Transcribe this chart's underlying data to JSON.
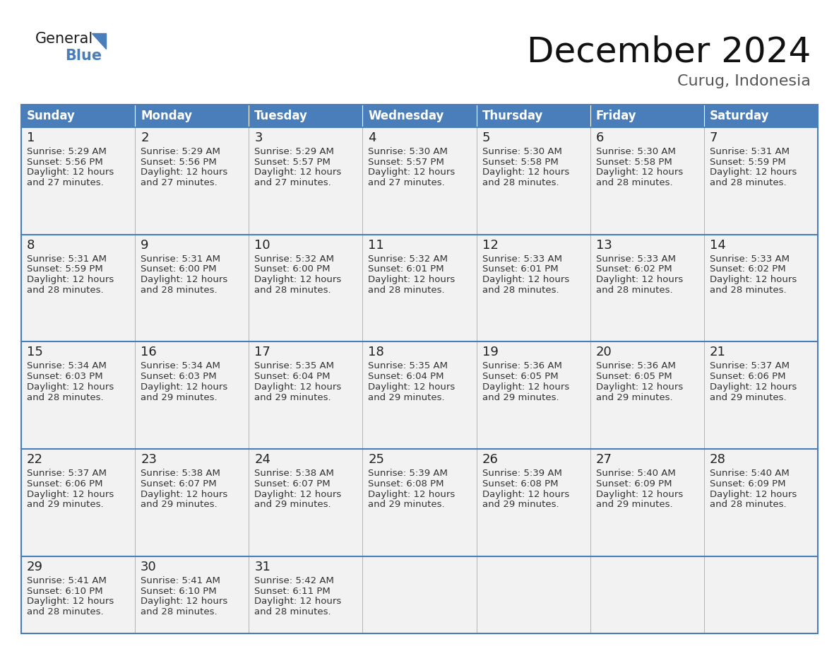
{
  "title": "December 2024",
  "subtitle": "Curug, Indonesia",
  "header_color": "#4A7EBB",
  "header_text_color": "#FFFFFF",
  "days_of_week": [
    "Sunday",
    "Monday",
    "Tuesday",
    "Wednesday",
    "Thursday",
    "Friday",
    "Saturday"
  ],
  "bg_color": "#FFFFFF",
  "cell_bg_even": "#F2F2F2",
  "cell_bg_odd": "#FFFFFF",
  "border_color_blue": "#4A7EBB",
  "border_color_light": "#AAAAAA",
  "text_color_day": "#222222",
  "text_color_info": "#333333",
  "calendar_data": [
    [
      {
        "day": 1,
        "sunrise": "5:29 AM",
        "sunset": "5:56 PM",
        "daylight_hours": 12,
        "daylight_minutes": 27
      },
      {
        "day": 2,
        "sunrise": "5:29 AM",
        "sunset": "5:56 PM",
        "daylight_hours": 12,
        "daylight_minutes": 27
      },
      {
        "day": 3,
        "sunrise": "5:29 AM",
        "sunset": "5:57 PM",
        "daylight_hours": 12,
        "daylight_minutes": 27
      },
      {
        "day": 4,
        "sunrise": "5:30 AM",
        "sunset": "5:57 PM",
        "daylight_hours": 12,
        "daylight_minutes": 27
      },
      {
        "day": 5,
        "sunrise": "5:30 AM",
        "sunset": "5:58 PM",
        "daylight_hours": 12,
        "daylight_minutes": 28
      },
      {
        "day": 6,
        "sunrise": "5:30 AM",
        "sunset": "5:58 PM",
        "daylight_hours": 12,
        "daylight_minutes": 28
      },
      {
        "day": 7,
        "sunrise": "5:31 AM",
        "sunset": "5:59 PM",
        "daylight_hours": 12,
        "daylight_minutes": 28
      }
    ],
    [
      {
        "day": 8,
        "sunrise": "5:31 AM",
        "sunset": "5:59 PM",
        "daylight_hours": 12,
        "daylight_minutes": 28
      },
      {
        "day": 9,
        "sunrise": "5:31 AM",
        "sunset": "6:00 PM",
        "daylight_hours": 12,
        "daylight_minutes": 28
      },
      {
        "day": 10,
        "sunrise": "5:32 AM",
        "sunset": "6:00 PM",
        "daylight_hours": 12,
        "daylight_minutes": 28
      },
      {
        "day": 11,
        "sunrise": "5:32 AM",
        "sunset": "6:01 PM",
        "daylight_hours": 12,
        "daylight_minutes": 28
      },
      {
        "day": 12,
        "sunrise": "5:33 AM",
        "sunset": "6:01 PM",
        "daylight_hours": 12,
        "daylight_minutes": 28
      },
      {
        "day": 13,
        "sunrise": "5:33 AM",
        "sunset": "6:02 PM",
        "daylight_hours": 12,
        "daylight_minutes": 28
      },
      {
        "day": 14,
        "sunrise": "5:33 AM",
        "sunset": "6:02 PM",
        "daylight_hours": 12,
        "daylight_minutes": 28
      }
    ],
    [
      {
        "day": 15,
        "sunrise": "5:34 AM",
        "sunset": "6:03 PM",
        "daylight_hours": 12,
        "daylight_minutes": 28
      },
      {
        "day": 16,
        "sunrise": "5:34 AM",
        "sunset": "6:03 PM",
        "daylight_hours": 12,
        "daylight_minutes": 29
      },
      {
        "day": 17,
        "sunrise": "5:35 AM",
        "sunset": "6:04 PM",
        "daylight_hours": 12,
        "daylight_minutes": 29
      },
      {
        "day": 18,
        "sunrise": "5:35 AM",
        "sunset": "6:04 PM",
        "daylight_hours": 12,
        "daylight_minutes": 29
      },
      {
        "day": 19,
        "sunrise": "5:36 AM",
        "sunset": "6:05 PM",
        "daylight_hours": 12,
        "daylight_minutes": 29
      },
      {
        "day": 20,
        "sunrise": "5:36 AM",
        "sunset": "6:05 PM",
        "daylight_hours": 12,
        "daylight_minutes": 29
      },
      {
        "day": 21,
        "sunrise": "5:37 AM",
        "sunset": "6:06 PM",
        "daylight_hours": 12,
        "daylight_minutes": 29
      }
    ],
    [
      {
        "day": 22,
        "sunrise": "5:37 AM",
        "sunset": "6:06 PM",
        "daylight_hours": 12,
        "daylight_minutes": 29
      },
      {
        "day": 23,
        "sunrise": "5:38 AM",
        "sunset": "6:07 PM",
        "daylight_hours": 12,
        "daylight_minutes": 29
      },
      {
        "day": 24,
        "sunrise": "5:38 AM",
        "sunset": "6:07 PM",
        "daylight_hours": 12,
        "daylight_minutes": 29
      },
      {
        "day": 25,
        "sunrise": "5:39 AM",
        "sunset": "6:08 PM",
        "daylight_hours": 12,
        "daylight_minutes": 29
      },
      {
        "day": 26,
        "sunrise": "5:39 AM",
        "sunset": "6:08 PM",
        "daylight_hours": 12,
        "daylight_minutes": 29
      },
      {
        "day": 27,
        "sunrise": "5:40 AM",
        "sunset": "6:09 PM",
        "daylight_hours": 12,
        "daylight_minutes": 29
      },
      {
        "day": 28,
        "sunrise": "5:40 AM",
        "sunset": "6:09 PM",
        "daylight_hours": 12,
        "daylight_minutes": 28
      }
    ],
    [
      {
        "day": 29,
        "sunrise": "5:41 AM",
        "sunset": "6:10 PM",
        "daylight_hours": 12,
        "daylight_minutes": 28
      },
      {
        "day": 30,
        "sunrise": "5:41 AM",
        "sunset": "6:10 PM",
        "daylight_hours": 12,
        "daylight_minutes": 28
      },
      {
        "day": 31,
        "sunrise": "5:42 AM",
        "sunset": "6:11 PM",
        "daylight_hours": 12,
        "daylight_minutes": 28
      },
      null,
      null,
      null,
      null
    ]
  ],
  "logo_text_general": "General",
  "logo_text_blue": "Blue",
  "logo_color_general": "#1A1A1A",
  "logo_color_blue": "#4A7EBB",
  "logo_triangle_color": "#4A7EBB",
  "title_fontsize": 36,
  "subtitle_fontsize": 16,
  "header_fontsize": 12,
  "day_num_fontsize": 13,
  "info_fontsize": 9.5
}
